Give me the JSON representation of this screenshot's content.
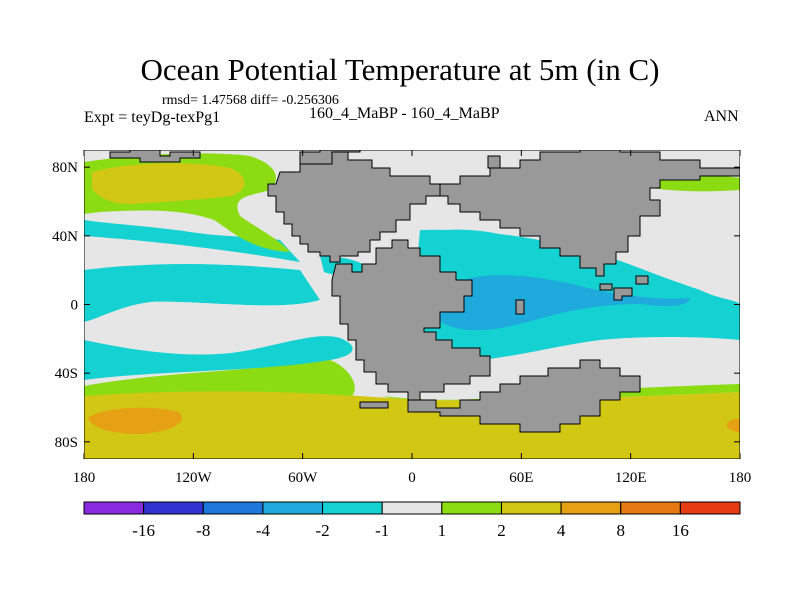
{
  "title": "Ocean Potential Temperature at 5m (in C)",
  "stats": "rmsd= 1.47568 diff= -0.256306",
  "left_label": "Expt = teyDg-texPg1",
  "center_label": "160_4_MaBP - 160_4_MaBP",
  "right_label": "ANN",
  "map": {
    "lat_labels": [
      {
        "text": "80N",
        "lat": 80
      },
      {
        "text": "40N",
        "lat": 40
      },
      {
        "text": "0",
        "lat": 0
      },
      {
        "text": "40S",
        "lat": -40
      },
      {
        "text": "80S",
        "lat": -80
      }
    ],
    "lon_labels": [
      {
        "text": "180",
        "lon": -180
      },
      {
        "text": "120W",
        "lon": -120
      },
      {
        "text": "60W",
        "lon": -60
      },
      {
        "text": "0",
        "lon": 0
      },
      {
        "text": "60E",
        "lon": 60
      },
      {
        "text": "120E",
        "lon": 120
      },
      {
        "text": "180",
        "lon": 180
      }
    ],
    "lat_range": [
      -90,
      90
    ],
    "lon_range": [
      -180,
      180
    ],
    "land_color": "#999999"
  },
  "colorbar": {
    "colors": [
      "#8a2be2",
      "#3232d2",
      "#1e78dc",
      "#1eaadc",
      "#14d2d2",
      "#e6e6e6",
      "#8cdc14",
      "#d2c814",
      "#e6a014",
      "#e67814",
      "#e63c14"
    ],
    "labels": [
      "-16",
      "-8",
      "-4",
      "-2",
      "-1",
      "1",
      "2",
      "4",
      "8",
      "16"
    ]
  }
}
